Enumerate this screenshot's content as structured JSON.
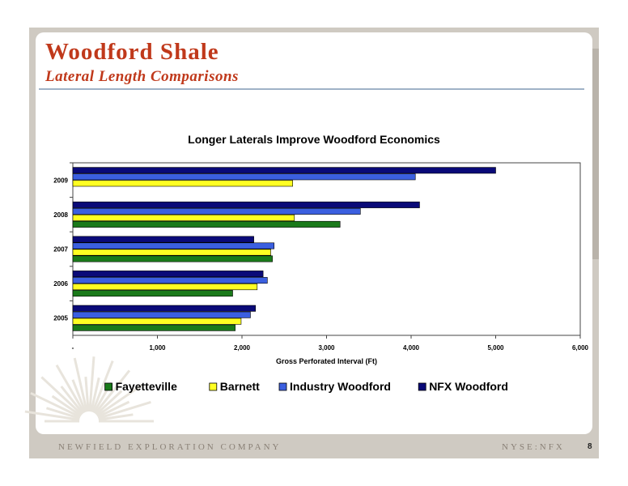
{
  "slide": {
    "title": "Woodford Shale",
    "subtitle": "Lateral Length Comparisons",
    "footer_company": "NEWFIELD EXPLORATION COMPANY",
    "footer_ticker": "NYSE:NFX",
    "page_number": "8"
  },
  "colors": {
    "title": "#c0391b",
    "rule": "#9fb2c7"
  },
  "chart_data": {
    "type": "bar",
    "orientation": "horizontal",
    "title": "Longer Laterals Improve Woodford Economics",
    "xlabel": "Gross Perforated Interval (Ft)",
    "ylabel": "",
    "xlim": [
      0,
      6000
    ],
    "x_ticks": [
      "-",
      "1,000",
      "2,000",
      "3,000",
      "4,000",
      "5,000",
      "6,000"
    ],
    "categories": [
      "2005",
      "2006",
      "2007",
      "2008",
      "2009"
    ],
    "series": [
      {
        "name": "Fayetteville",
        "color": "#1a7a1a",
        "values": [
          1920,
          1890,
          2360,
          3160,
          null
        ]
      },
      {
        "name": "Barnett",
        "color": "#ffff22",
        "values": [
          1990,
          2180,
          2340,
          2620,
          2600
        ]
      },
      {
        "name": "Industry Woodford",
        "color": "#3b5fe0",
        "values": [
          2100,
          2300,
          2380,
          3400,
          4050
        ]
      },
      {
        "name": "NFX Woodford",
        "color": "#0a0a78",
        "values": [
          2160,
          2250,
          2140,
          4100,
          5000
        ]
      }
    ],
    "legend_position": "bottom",
    "grid": false
  }
}
